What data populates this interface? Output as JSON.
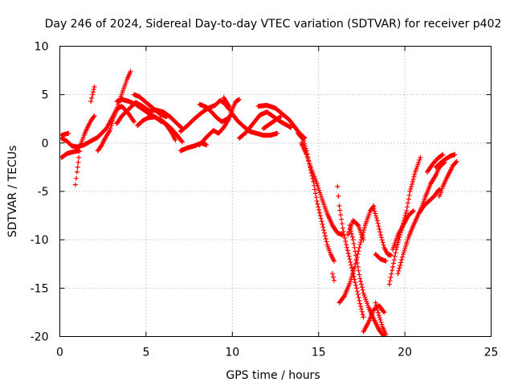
{
  "colors": {
    "series": "#ff0000",
    "frame": "#000000",
    "grid": "#a0a0a0",
    "background": "#ffffff"
  },
  "chart_data": {
    "type": "scatter",
    "marker": "plus",
    "title": "Day 246 of 2024, Sidereal Day-to-day VTEC variation (SDTVAR) for receiver p402",
    "xlabel": "GPS time / hours",
    "ylabel": "SDTVAR / TECUs",
    "xlim": [
      0,
      25
    ],
    "ylim": [
      -20,
      10
    ],
    "xticks": [
      0,
      5,
      10,
      15,
      20,
      25
    ],
    "yticks": [
      -20,
      -15,
      -10,
      -5,
      0,
      5,
      10
    ],
    "grid": true,
    "legend": "none",
    "tracks": [
      {
        "points": [
          [
            0.1,
            0.5
          ],
          [
            0.4,
            0.2
          ],
          [
            0.7,
            -0.3
          ],
          [
            1.0,
            -0.4
          ],
          [
            1.4,
            -0.2
          ],
          [
            1.8,
            0.2
          ],
          [
            2.2,
            0.6
          ],
          [
            2.7,
            1.5
          ],
          [
            3.0,
            2.5
          ],
          [
            3.3,
            3.5
          ],
          [
            3.6,
            3.8
          ],
          [
            4.0,
            3.0
          ],
          [
            4.3,
            2.2
          ]
        ]
      },
      {
        "points": [
          [
            0.1,
            -1.5
          ],
          [
            0.4,
            -1.1
          ],
          [
            0.8,
            -0.9
          ],
          [
            1.1,
            -0.8
          ]
        ]
      },
      {
        "points": [
          [
            0.1,
            0.8
          ],
          [
            0.3,
            0.9
          ],
          [
            0.5,
            1.0
          ]
        ]
      },
      {
        "points": [
          [
            0.9,
            -4.3
          ],
          [
            1.0,
            -3.0
          ],
          [
            1.1,
            -1.5
          ],
          [
            1.2,
            -0.2
          ],
          [
            1.4,
            0.8
          ],
          [
            1.6,
            1.6
          ],
          [
            1.8,
            2.3
          ],
          [
            2.0,
            2.8
          ]
        ]
      },
      {
        "points": [
          [
            1.8,
            4.3
          ],
          [
            1.9,
            5.0
          ],
          [
            2.0,
            5.8
          ]
        ]
      },
      {
        "points": [
          [
            2.2,
            -0.8
          ],
          [
            2.4,
            -0.3
          ],
          [
            2.6,
            0.4
          ],
          [
            2.9,
            1.3
          ],
          [
            3.1,
            2.5
          ],
          [
            3.3,
            3.5
          ],
          [
            3.5,
            4.6
          ],
          [
            3.7,
            5.6
          ],
          [
            3.9,
            6.6
          ],
          [
            4.1,
            7.4
          ]
        ]
      },
      {
        "points": [
          [
            3.3,
            4.3
          ],
          [
            3.6,
            4.5
          ],
          [
            4.0,
            4.3
          ],
          [
            4.4,
            4.0
          ],
          [
            4.8,
            3.5
          ],
          [
            5.2,
            3.0
          ],
          [
            5.6,
            2.6
          ],
          [
            6.0,
            2.2
          ],
          [
            6.4,
            1.6
          ],
          [
            6.8,
            0.8
          ],
          [
            7.1,
            0.1
          ]
        ]
      },
      {
        "points": [
          [
            3.3,
            2.0
          ],
          [
            3.6,
            2.8
          ],
          [
            4.0,
            3.5
          ],
          [
            4.4,
            4.2
          ],
          [
            4.8,
            3.8
          ],
          [
            5.2,
            3.3
          ],
          [
            5.6,
            3.4
          ],
          [
            6.0,
            3.2
          ],
          [
            6.4,
            2.7
          ],
          [
            6.8,
            2.0
          ],
          [
            7.1,
            1.5
          ]
        ]
      },
      {
        "points": [
          [
            4.3,
            5.0
          ],
          [
            4.6,
            4.8
          ],
          [
            5.0,
            4.2
          ],
          [
            5.4,
            3.6
          ],
          [
            5.8,
            3.0
          ],
          [
            6.2,
            2.7
          ]
        ]
      },
      {
        "points": [
          [
            4.5,
            1.8
          ],
          [
            4.8,
            2.3
          ],
          [
            5.1,
            2.6
          ],
          [
            5.5,
            2.7
          ],
          [
            5.9,
            2.2
          ]
        ]
      },
      {
        "points": [
          [
            5.8,
            2.5
          ],
          [
            6.2,
            1.8
          ],
          [
            6.5,
            1.0
          ],
          [
            6.7,
            0.3
          ]
        ]
      },
      {
        "points": [
          [
            7.0,
            -0.8
          ],
          [
            7.4,
            -0.5
          ],
          [
            7.8,
            -0.3
          ],
          [
            8.2,
            0.0
          ],
          [
            8.5,
            -0.2
          ]
        ]
      },
      {
        "points": [
          [
            7.0,
            1.2
          ],
          [
            7.4,
            1.8
          ],
          [
            7.8,
            2.5
          ],
          [
            8.2,
            3.1
          ],
          [
            8.6,
            3.6
          ],
          [
            9.0,
            3.9
          ],
          [
            9.3,
            4.4
          ],
          [
            9.6,
            4.0
          ],
          [
            9.8,
            3.5
          ]
        ]
      },
      {
        "points": [
          [
            8.1,
            4.0
          ],
          [
            8.5,
            3.7
          ],
          [
            8.8,
            3.2
          ],
          [
            9.1,
            2.6
          ],
          [
            9.4,
            2.2
          ],
          [
            9.7,
            2.5
          ],
          [
            10.0,
            3.0
          ]
        ]
      },
      {
        "points": [
          [
            8.1,
            -0.2
          ],
          [
            8.5,
            0.6
          ],
          [
            8.9,
            1.3
          ],
          [
            9.2,
            1.0
          ],
          [
            9.5,
            1.6
          ],
          [
            9.8,
            2.5
          ],
          [
            10.0,
            3.5
          ],
          [
            10.2,
            4.3
          ],
          [
            10.4,
            4.5
          ]
        ]
      },
      {
        "points": [
          [
            9.5,
            4.7
          ],
          [
            9.8,
            3.8
          ],
          [
            10.0,
            3.0
          ],
          [
            10.3,
            2.3
          ],
          [
            10.6,
            1.8
          ],
          [
            11.0,
            1.2
          ],
          [
            11.4,
            1.0
          ],
          [
            11.8,
            0.8
          ],
          [
            12.2,
            0.8
          ],
          [
            12.6,
            1.0
          ]
        ]
      },
      {
        "points": [
          [
            10.4,
            0.5
          ],
          [
            10.8,
            1.1
          ],
          [
            11.2,
            2.0
          ],
          [
            11.6,
            2.9
          ],
          [
            12.0,
            3.2
          ],
          [
            12.4,
            2.7
          ],
          [
            12.8,
            2.2
          ],
          [
            13.1,
            1.9
          ],
          [
            13.4,
            1.6
          ]
        ]
      },
      {
        "points": [
          [
            11.5,
            3.8
          ],
          [
            12.0,
            3.9
          ],
          [
            12.5,
            3.6
          ],
          [
            12.9,
            3.0
          ],
          [
            13.3,
            2.4
          ],
          [
            13.6,
            1.7
          ],
          [
            13.9,
            1.0
          ],
          [
            14.2,
            0.5
          ]
        ]
      },
      {
        "points": [
          [
            11.8,
            1.5
          ],
          [
            12.2,
            2.0
          ],
          [
            12.6,
            2.5
          ],
          [
            12.8,
            2.7
          ]
        ]
      },
      {
        "points": [
          [
            13.8,
            1.0
          ],
          [
            14.1,
            0.4
          ],
          [
            14.3,
            -0.8
          ],
          [
            14.5,
            -2.5
          ],
          [
            14.7,
            -4.0
          ],
          [
            14.9,
            -6.0
          ],
          [
            15.1,
            -7.5
          ],
          [
            15.3,
            -9.0
          ],
          [
            15.5,
            -10.5
          ],
          [
            15.7,
            -11.5
          ],
          [
            15.9,
            -12.2
          ]
        ]
      },
      {
        "points": [
          [
            14.0,
            0.0
          ],
          [
            14.3,
            -1.2
          ],
          [
            14.6,
            -2.8
          ],
          [
            14.9,
            -4.2
          ],
          [
            15.2,
            -5.8
          ],
          [
            15.5,
            -7.3
          ],
          [
            15.8,
            -8.5
          ],
          [
            16.1,
            -9.3
          ],
          [
            16.4,
            -9.5
          ]
        ]
      },
      {
        "points": [
          [
            15.8,
            -13.5
          ],
          [
            15.9,
            -14.2
          ]
        ]
      },
      {
        "points": [
          [
            16.1,
            -4.5
          ],
          [
            16.2,
            -6.5
          ],
          [
            16.4,
            -8.8
          ],
          [
            16.6,
            -10.5
          ],
          [
            16.8,
            -12.0
          ],
          [
            17.0,
            -13.5
          ],
          [
            17.2,
            -15.0
          ],
          [
            17.4,
            -16.6
          ],
          [
            17.6,
            -18.0
          ]
        ]
      },
      {
        "points": [
          [
            16.2,
            -16.5
          ],
          [
            16.5,
            -15.8
          ],
          [
            16.8,
            -14.5
          ],
          [
            17.1,
            -12.8
          ],
          [
            17.4,
            -10.5
          ],
          [
            17.7,
            -8.5
          ],
          [
            18.0,
            -7.0
          ],
          [
            18.2,
            -6.5
          ]
        ]
      },
      {
        "points": [
          [
            16.8,
            -8.5
          ],
          [
            17.0,
            -10.0
          ],
          [
            17.2,
            -12.0
          ],
          [
            17.4,
            -14.0
          ],
          [
            17.6,
            -15.5
          ],
          [
            17.9,
            -17.0
          ],
          [
            18.2,
            -18.2
          ],
          [
            18.5,
            -19.3
          ],
          [
            18.8,
            -20.0
          ]
        ]
      },
      {
        "points": [
          [
            16.7,
            -9.5
          ],
          [
            17.0,
            -8.0
          ],
          [
            17.3,
            -8.5
          ],
          [
            17.6,
            -10.0
          ]
        ]
      },
      {
        "points": [
          [
            17.6,
            -19.5
          ],
          [
            17.9,
            -18.5
          ],
          [
            18.2,
            -17.2
          ],
          [
            18.5,
            -16.8
          ],
          [
            18.8,
            -17.5
          ]
        ]
      },
      {
        "points": [
          [
            18.2,
            -6.8
          ],
          [
            18.4,
            -8.0
          ],
          [
            18.6,
            -9.5
          ],
          [
            18.8,
            -10.8
          ],
          [
            19.0,
            -11.5
          ],
          [
            19.2,
            -11.6
          ]
        ]
      },
      {
        "points": [
          [
            18.3,
            -11.5
          ],
          [
            18.6,
            -12.0
          ],
          [
            18.9,
            -12.2
          ]
        ]
      },
      {
        "points": [
          [
            18.3,
            -16.5
          ],
          [
            18.5,
            -17.8
          ],
          [
            18.7,
            -19.0
          ],
          [
            18.9,
            -19.8
          ]
        ]
      },
      {
        "points": [
          [
            19.1,
            -14.6
          ],
          [
            19.3,
            -12.8
          ],
          [
            19.5,
            -11.0
          ],
          [
            19.8,
            -9.0
          ],
          [
            20.1,
            -7.0
          ],
          [
            20.3,
            -5.0
          ],
          [
            20.6,
            -3.0
          ],
          [
            20.8,
            -2.0
          ],
          [
            20.9,
            -1.5
          ]
        ]
      },
      {
        "points": [
          [
            19.3,
            -11.0
          ],
          [
            19.6,
            -9.5
          ],
          [
            19.9,
            -8.5
          ],
          [
            20.2,
            -7.5
          ],
          [
            20.5,
            -7.0
          ]
        ]
      },
      {
        "points": [
          [
            19.6,
            -13.5
          ],
          [
            19.9,
            -11.5
          ],
          [
            20.2,
            -9.8
          ],
          [
            20.5,
            -8.5
          ],
          [
            20.8,
            -7.3
          ],
          [
            21.1,
            -6.5
          ],
          [
            21.4,
            -6.0
          ],
          [
            21.7,
            -5.5
          ],
          [
            21.9,
            -5.0
          ],
          [
            22.0,
            -4.8
          ]
        ]
      },
      {
        "points": [
          [
            20.9,
            -7.0
          ],
          [
            21.2,
            -5.5
          ],
          [
            21.5,
            -4.2
          ],
          [
            21.8,
            -3.3
          ],
          [
            22.0,
            -2.5
          ],
          [
            22.3,
            -2.0
          ]
        ]
      },
      {
        "points": [
          [
            21.3,
            -3.0
          ],
          [
            21.6,
            -2.2
          ],
          [
            21.9,
            -1.6
          ],
          [
            22.2,
            -1.2
          ]
        ]
      },
      {
        "points": [
          [
            22.0,
            -5.5
          ],
          [
            22.2,
            -4.5
          ],
          [
            22.4,
            -3.7
          ],
          [
            22.6,
            -3.0
          ],
          [
            22.8,
            -2.3
          ],
          [
            23.0,
            -1.9
          ]
        ]
      },
      {
        "points": [
          [
            21.8,
            -2.5
          ],
          [
            22.1,
            -2.0
          ],
          [
            22.4,
            -1.6
          ],
          [
            22.7,
            -1.3
          ],
          [
            22.9,
            -1.2
          ]
        ]
      }
    ]
  }
}
